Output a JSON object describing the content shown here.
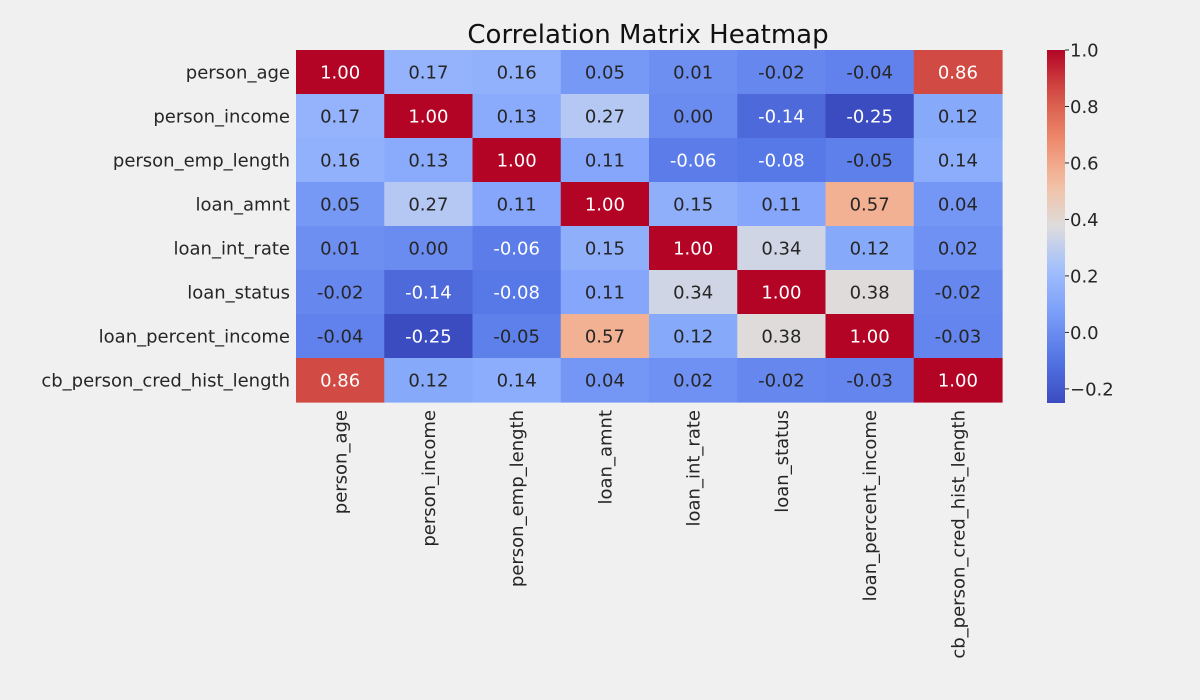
{
  "chart_data": {
    "type": "heatmap",
    "title": "Correlation Matrix Heatmap",
    "xlabel": "",
    "ylabel": "",
    "variables": [
      "person_age",
      "person_income",
      "person_emp_length",
      "loan_amnt",
      "loan_int_rate",
      "loan_status",
      "loan_percent_income",
      "cb_person_cred_hist_length"
    ],
    "matrix": [
      [
        1.0,
        0.17,
        0.16,
        0.05,
        0.01,
        -0.02,
        -0.04,
        0.86
      ],
      [
        0.17,
        1.0,
        0.13,
        0.27,
        0.0,
        -0.14,
        -0.25,
        0.12
      ],
      [
        0.16,
        0.13,
        1.0,
        0.11,
        -0.06,
        -0.08,
        -0.05,
        0.14
      ],
      [
        0.05,
        0.27,
        0.11,
        1.0,
        0.15,
        0.11,
        0.57,
        0.04
      ],
      [
        0.01,
        0.0,
        -0.06,
        0.15,
        1.0,
        0.34,
        0.12,
        0.02
      ],
      [
        -0.02,
        -0.14,
        -0.08,
        0.11,
        0.34,
        1.0,
        0.38,
        -0.02
      ],
      [
        -0.04,
        -0.25,
        -0.05,
        0.57,
        0.12,
        0.38,
        1.0,
        -0.03
      ],
      [
        0.86,
        0.12,
        0.14,
        0.04,
        0.02,
        -0.02,
        -0.03,
        1.0
      ]
    ],
    "value_format": "2 decimals",
    "colormap": "coolwarm",
    "colorbar": {
      "vmin": -0.25,
      "vmax": 1.0,
      "ticks": [
        -0.2,
        0.0,
        0.2,
        0.4,
        0.6,
        0.8,
        1.0
      ],
      "tick_labels": [
        "−0.2",
        "0.0",
        "0.2",
        "0.4",
        "0.6",
        "0.8",
        "1.0"
      ],
      "placement": "right"
    },
    "grid": false,
    "background_color": "#f0f0f0"
  }
}
